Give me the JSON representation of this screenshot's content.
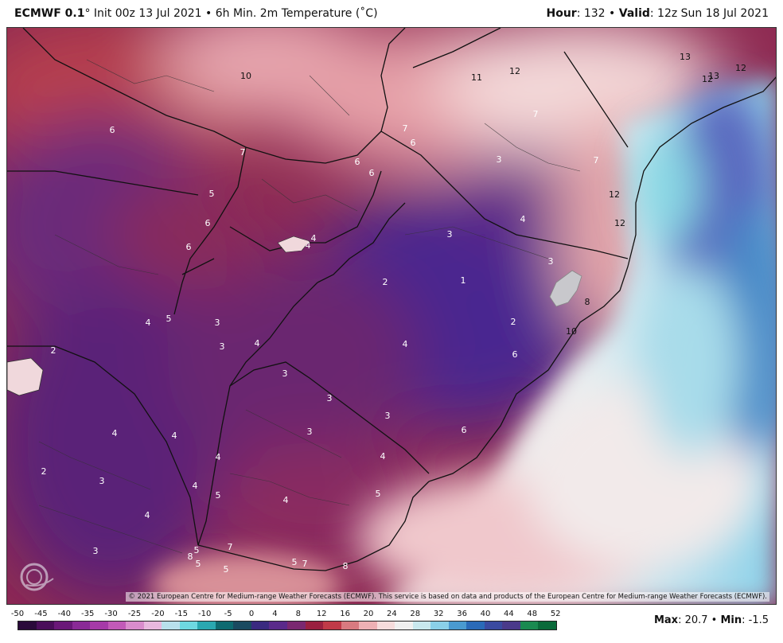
{
  "header": {
    "model": "ECMWF 0.1",
    "degree": "°",
    "run_info": "Init 00z 13 Jul 2021 • 6h Min. 2m Temperature (˚C)",
    "hour_label": "Hour",
    "hour_value": ": 132 • ",
    "valid_label": "Valid",
    "valid_value": ": 12z Sun 18 Jul 2021"
  },
  "map": {
    "copyright": "© 2021 European Centre for Medium-range Weather Forecasts (ECMWF). This service is based on data and products of the European Centre for Medium-range Weather Forecasts (ECMWF).",
    "logo_text": "WEATHERBELL",
    "labels": [
      {
        "text": "10",
        "dark": true
      },
      {
        "text": "11",
        "dark": true
      },
      {
        "text": "12",
        "dark": true
      },
      {
        "text": "13",
        "dark": true
      },
      {
        "text": "12",
        "dark": true
      },
      {
        "text": "13",
        "dark": true
      },
      {
        "text": "12",
        "dark": true
      },
      {
        "text": "6",
        "dark": false
      },
      {
        "text": "7",
        "dark": false
      },
      {
        "text": "7",
        "dark": false
      },
      {
        "text": "6",
        "dark": false
      },
      {
        "text": "6",
        "dark": false
      },
      {
        "text": "7",
        "dark": false
      },
      {
        "text": "3",
        "dark": false
      },
      {
        "text": "7",
        "dark": false
      },
      {
        "text": "6",
        "dark": false
      },
      {
        "text": "5",
        "dark": false
      },
      {
        "text": "6",
        "dark": false
      },
      {
        "text": "6",
        "dark": false
      },
      {
        "text": "4",
        "dark": false
      },
      {
        "text": "4",
        "dark": false
      },
      {
        "text": "3",
        "dark": false
      },
      {
        "text": "4",
        "dark": false
      },
      {
        "text": "12",
        "dark": true
      },
      {
        "text": "12",
        "dark": true
      },
      {
        "text": "2",
        "dark": false
      },
      {
        "text": "1",
        "dark": false
      },
      {
        "text": "3",
        "dark": false
      },
      {
        "text": "8",
        "dark": true
      },
      {
        "text": "2",
        "dark": false
      },
      {
        "text": "10",
        "dark": true
      },
      {
        "text": "4",
        "dark": false
      },
      {
        "text": "5",
        "dark": false
      },
      {
        "text": "3",
        "dark": false
      },
      {
        "text": "3",
        "dark": false
      },
      {
        "text": "4",
        "dark": false
      },
      {
        "text": "2",
        "dark": false
      },
      {
        "text": "4",
        "dark": false
      },
      {
        "text": "6",
        "dark": false
      },
      {
        "text": "3",
        "dark": false
      },
      {
        "text": "3",
        "dark": false
      },
      {
        "text": "3",
        "dark": false
      },
      {
        "text": "4",
        "dark": false
      },
      {
        "text": "6",
        "dark": false
      },
      {
        "text": "4",
        "dark": false
      },
      {
        "text": "3",
        "dark": false
      },
      {
        "text": "4",
        "dark": false
      },
      {
        "text": "4",
        "dark": false
      },
      {
        "text": "2",
        "dark": false
      },
      {
        "text": "3",
        "dark": false
      },
      {
        "text": "4",
        "dark": false
      },
      {
        "text": "5",
        "dark": false
      },
      {
        "text": "4",
        "dark": false
      },
      {
        "text": "5",
        "dark": false
      },
      {
        "text": "4",
        "dark": false
      },
      {
        "text": "3",
        "dark": false
      },
      {
        "text": "5",
        "dark": false
      },
      {
        "text": "5",
        "dark": false
      },
      {
        "text": "7",
        "dark": false
      },
      {
        "text": "5",
        "dark": false
      },
      {
        "text": "5",
        "dark": false
      },
      {
        "text": "7",
        "dark": false
      },
      {
        "text": "8",
        "dark": false
      },
      {
        "text": "8",
        "dark": false
      }
    ]
  },
  "legend": {
    "ticks": [
      "-50",
      "-45",
      "-40",
      "-35",
      "-30",
      "-25",
      "-20",
      "-15",
      "-10",
      "-5",
      "0",
      "4",
      "8",
      "12",
      "16",
      "20",
      "24",
      "28",
      "32",
      "36",
      "40",
      "44",
      "48",
      "52"
    ],
    "colors": [
      "#2a0a3a",
      "#4a0e5a",
      "#6a1878",
      "#8a2a96",
      "#a63aa8",
      "#c25ab8",
      "#d98ccc",
      "#e8b8de",
      "#b8e0ec",
      "#6ed8e0",
      "#2aa8b0",
      "#0e6a70",
      "#1a4a60",
      "#3a2a80",
      "#5a2a8a",
      "#7a2870",
      "#9a2040",
      "#c03a48",
      "#d87a80",
      "#eeb0b4",
      "#f6dcdc",
      "#f0f0f0",
      "#c8e8ee",
      "#8ad0e8",
      "#4a9ad0",
      "#2a6ab8",
      "#3a4aa0",
      "#4a3a8a",
      "#1a8a50",
      "#0a6a3a"
    ],
    "max_label": "Max",
    "max_value": ": 20.7 • ",
    "min_label": "Min",
    "min_value": ": -1.5"
  }
}
